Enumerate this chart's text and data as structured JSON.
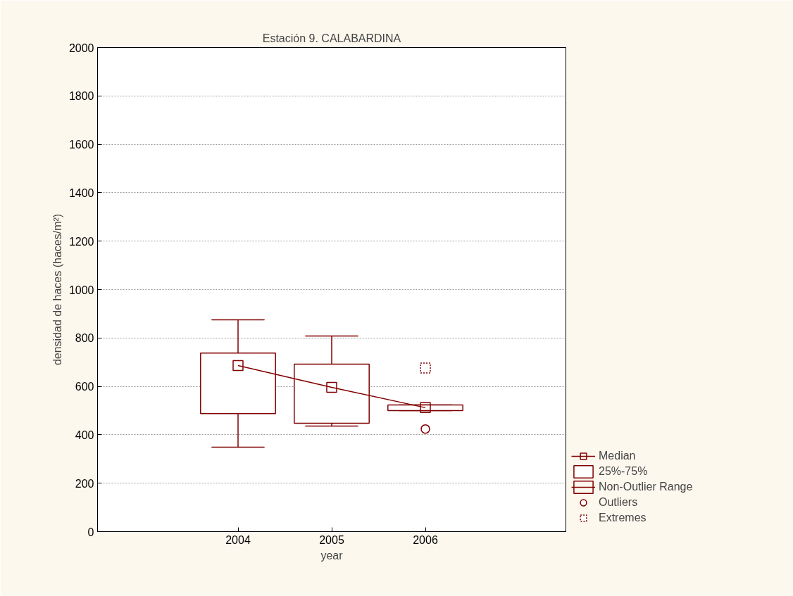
{
  "chart_data": {
    "type": "box",
    "title": "Estación 9. CALABARDINA",
    "xlabel": "year",
    "ylabel": "densidad de haces (haces/m²)",
    "categories": [
      "2004",
      "2005",
      "2006"
    ],
    "ylim": [
      0,
      2000
    ],
    "yticks": [
      0,
      200,
      400,
      600,
      800,
      1000,
      1200,
      1400,
      1600,
      1800,
      2000
    ],
    "grid": "y",
    "legend": "bottom right",
    "annotations": [
      "Non-Outlier Range"
    ],
    "series": [
      {
        "name": "Median",
        "type": "line",
        "color": "#800000",
        "marker": "none",
        "values": [
          686,
          596,
          512
        ]
      },
      {
        "name": "25%-75%",
        "color": "#800000",
        "marker": "square",
        "boxes": [
          {
            "low": 349,
            "q1": 488,
            "median": 686,
            "q3": 738,
            "high": 875
          },
          {
            "low": 436,
            "q1": 448,
            "median": 596,
            "q3": 692,
            "high": 808
          },
          {
            "low": 500,
            "q1": 500,
            "median": 512,
            "q3": 523,
            "high": 523
          }
        ]
      },
      {
        "name": "Outliers",
        "type": "scatter",
        "color": "#800000",
        "marker": "circle",
        "values": [
          null,
          null,
          424
        ]
      },
      {
        "name": "Extremes",
        "type": "scatter",
        "color": "#800000",
        "marker": "square",
        "line_style": "dotted",
        "values": [
          null,
          null,
          676
        ]
      }
    ]
  }
}
